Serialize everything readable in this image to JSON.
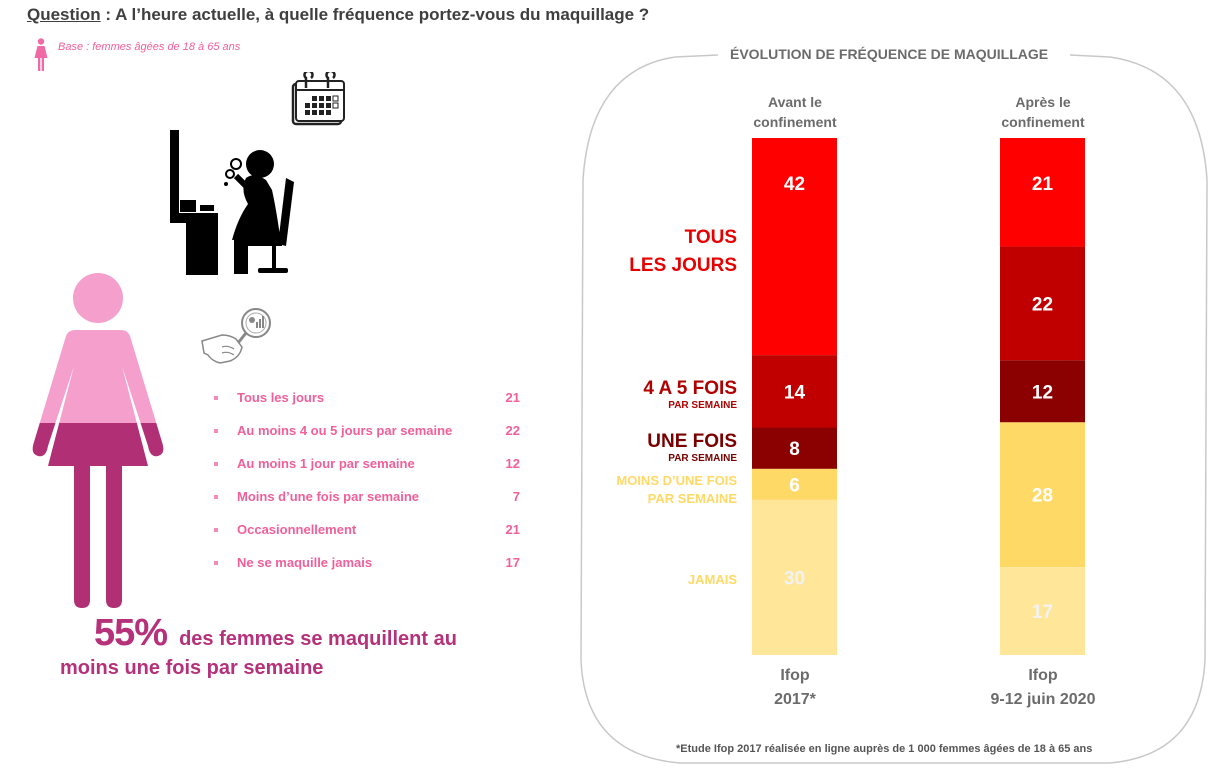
{
  "header": {
    "question_label": "Question",
    "question_text": " : A l’heure actuelle, à quelle fréquence portez-vous du maquillage ?",
    "base_text": "Base : femmes âgées de 18 à 65 ans",
    "base_icon": "woman-icon"
  },
  "illustrations": {
    "calendar": "calendar-icon",
    "makeup_woman": "woman-applying-makeup-icon",
    "magnifier": "hand-magnifier-icon",
    "figure": "woman-figure-icon"
  },
  "stats": {
    "items": [
      {
        "label": "Tous les jours",
        "value": "21"
      },
      {
        "label": "Au moins 4 ou 5 jours par semaine",
        "value": "22"
      },
      {
        "label": "Au moins 1 jour par semaine",
        "value": "12"
      },
      {
        "label": "Moins d’une fois par semaine",
        "value": "7"
      },
      {
        "label": "Occasionnellement",
        "value": "21"
      },
      {
        "label": "Ne se maquille jamais",
        "value": "17"
      }
    ]
  },
  "summary": {
    "percent": "55%",
    "text_line1": "des femmes se maquillent au",
    "text_line2": "moins une fois par semaine"
  },
  "colors": {
    "pink_light": "#f59fcd",
    "pink_dark": "#b12f74",
    "pink_text": "#f0609a",
    "red": "#ff0000",
    "dark_red": "#c00000",
    "darker_red": "#8b0000",
    "yellow": "#ffd966",
    "light_yellow": "#ffe699"
  },
  "chart_data": {
    "type": "bar",
    "stacked": true,
    "orientation": "vertical",
    "title": "ÉVOLUTION DE FRÉQUENCE DE MAQUILLAGE",
    "categories": [
      "Avant le confinement",
      "Après le confinement"
    ],
    "column_headers": [
      [
        "Avant le",
        "confinement"
      ],
      [
        "Après le",
        "confinement"
      ]
    ],
    "column_footers": [
      [
        "Ifop",
        "2017*"
      ],
      [
        "Ifop",
        "9-12 juin 2020"
      ]
    ],
    "series": [
      {
        "name": "Tous les jours",
        "label_lines": [
          "TOUS",
          "LES JOURS"
        ],
        "color": "#ff0000",
        "text_color": "#ffffff",
        "label_color": "#e60000",
        "values": [
          42,
          21
        ]
      },
      {
        "name": "4 à 5 fois par semaine",
        "label_lines": [
          "4 A 5 FOIS",
          "PAR SEMAINE"
        ],
        "color": "#c00000",
        "text_color": "#ffffff",
        "label_color": "#b00000",
        "values": [
          14,
          22
        ]
      },
      {
        "name": "Une fois par semaine",
        "label_lines": [
          "UNE FOIS",
          "PAR SEMAINE"
        ],
        "color": "#8b0000",
        "text_color": "#ffffff",
        "label_color": "#7a0000",
        "values": [
          8,
          12
        ]
      },
      {
        "name": "Moins d’une fois par semaine",
        "label_lines": [
          "MOINS D’UNE FOIS",
          "PAR SEMAINE"
        ],
        "color": "#ffd966",
        "text_color": "#ffffff",
        "label_color": "#ffd966",
        "values": [
          6,
          28
        ]
      },
      {
        "name": "Jamais",
        "label_lines": [
          "JAMAIS"
        ],
        "color": "#ffe699",
        "text_color": "#f2f2f2",
        "label_color": "#ffd966",
        "values": [
          30,
          17
        ]
      }
    ],
    "ylim": [
      0,
      100
    ],
    "legend": "left-of-first-bar",
    "footnote": "*Etude Ifop 2017 réalisée en ligne auprès de 1 000 femmes âgées de 18 à 65 ans"
  }
}
